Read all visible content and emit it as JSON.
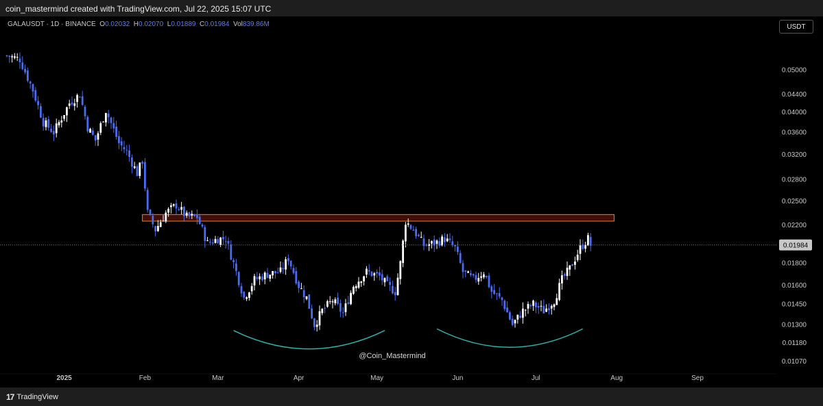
{
  "header": {
    "credit": "coin_mastermind created with TradingView.com, Jul 22, 2025 15:07 UTC"
  },
  "legend": {
    "symbol": "GALAUSDT · 1D · BINANCE",
    "o_label": "O",
    "o": "0.02032",
    "h_label": "H",
    "h": "0.02070",
    "l_label": "L",
    "l": "0.01889",
    "c_label": "C",
    "c": "0.01984",
    "vol_label": "Vol",
    "vol": "839.86M"
  },
  "currency": "USDT",
  "footer": {
    "brand": "TradingView",
    "brand_mark": "17"
  },
  "colors": {
    "background": "#000000",
    "up_candle": "#ffffff",
    "down_candle": "#4a6cf0",
    "resistance_zone": "#f0802a",
    "arc": "#2bb3b0"
  },
  "chart_data": {
    "type": "candlestick",
    "symbol": "GALAUSDT",
    "interval": "1D",
    "exchange": "BINANCE",
    "y_scale": "log",
    "ylim": [
      0.0104,
      0.0575
    ],
    "y_ticks": [
      "0.05000",
      "0.04400",
      "0.04000",
      "0.03600",
      "0.03200",
      "0.02800",
      "0.02500",
      "0.02200",
      "0.01800",
      "0.01600",
      "0.01450",
      "0.01300",
      "0.01180",
      "0.01070"
    ],
    "x_ticks": [
      "2025",
      "Feb",
      "Mar",
      "Apr",
      "May",
      "Jun",
      "Jul",
      "Aug",
      "Sep"
    ],
    "last_price": 0.01984,
    "last_price_label": "0.01984",
    "grid": false,
    "resistance_zone": {
      "low": 0.0225,
      "high": 0.0233,
      "from": "2025-01-31",
      "to": "2025-07-31"
    },
    "rounded_bottom_arcs": [
      {
        "from": "2025-03-07",
        "to": "2025-05-04",
        "low": 0.0114
      },
      {
        "from": "2025-05-24",
        "to": "2025-07-19",
        "low": 0.0115
      }
    ],
    "watermark": "@Coin_Mastermind",
    "close_path": [
      [
        "2024-12-10",
        0.054
      ],
      [
        "2024-12-15",
        0.053
      ],
      [
        "2024-12-20",
        0.045
      ],
      [
        "2024-12-24",
        0.038
      ],
      [
        "2024-12-28",
        0.036
      ],
      [
        "2025-01-03",
        0.042
      ],
      [
        "2025-01-07",
        0.044
      ],
      [
        "2025-01-10",
        0.037
      ],
      [
        "2025-01-13",
        0.0345
      ],
      [
        "2025-01-17",
        0.0405
      ],
      [
        "2025-01-22",
        0.034
      ],
      [
        "2025-01-25",
        0.0325
      ],
      [
        "2025-01-29",
        0.029
      ],
      [
        "2025-01-31",
        0.031
      ],
      [
        "2025-02-02",
        0.0235
      ],
      [
        "2025-02-05",
        0.0215
      ],
      [
        "2025-02-09",
        0.0235
      ],
      [
        "2025-02-13",
        0.0245
      ],
      [
        "2025-02-17",
        0.023
      ],
      [
        "2025-02-21",
        0.023
      ],
      [
        "2025-02-25",
        0.02
      ],
      [
        "2025-03-01",
        0.0205
      ],
      [
        "2025-03-04",
        0.0205
      ],
      [
        "2025-03-07",
        0.018
      ],
      [
        "2025-03-11",
        0.015
      ],
      [
        "2025-03-15",
        0.0165
      ],
      [
        "2025-03-20",
        0.017
      ],
      [
        "2025-03-25",
        0.0172
      ],
      [
        "2025-03-28",
        0.0185
      ],
      [
        "2025-04-01",
        0.016
      ],
      [
        "2025-04-04",
        0.015
      ],
      [
        "2025-04-07",
        0.013
      ],
      [
        "2025-04-10",
        0.014
      ],
      [
        "2025-04-14",
        0.0148
      ],
      [
        "2025-04-18",
        0.0138
      ],
      [
        "2025-04-22",
        0.016
      ],
      [
        "2025-04-27",
        0.0172
      ],
      [
        "2025-05-02",
        0.0168
      ],
      [
        "2025-05-05",
        0.016
      ],
      [
        "2025-05-08",
        0.0155
      ],
      [
        "2025-05-10",
        0.018
      ],
      [
        "2025-05-12",
        0.0225
      ],
      [
        "2025-05-15",
        0.0215
      ],
      [
        "2025-05-19",
        0.0198
      ],
      [
        "2025-05-23",
        0.02
      ],
      [
        "2025-05-27",
        0.0205
      ],
      [
        "2025-05-31",
        0.0195
      ],
      [
        "2025-06-03",
        0.0172
      ],
      [
        "2025-06-07",
        0.0165
      ],
      [
        "2025-06-11",
        0.0172
      ],
      [
        "2025-06-14",
        0.0155
      ],
      [
        "2025-06-18",
        0.0148
      ],
      [
        "2025-06-22",
        0.013
      ],
      [
        "2025-06-26",
        0.014
      ],
      [
        "2025-06-30",
        0.0145
      ],
      [
        "2025-07-04",
        0.014
      ],
      [
        "2025-07-08",
        0.0148
      ],
      [
        "2025-07-11",
        0.0165
      ],
      [
        "2025-07-14",
        0.0175
      ],
      [
        "2025-07-18",
        0.0195
      ],
      [
        "2025-07-21",
        0.0205
      ],
      [
        "2025-07-22",
        0.01984
      ]
    ]
  }
}
